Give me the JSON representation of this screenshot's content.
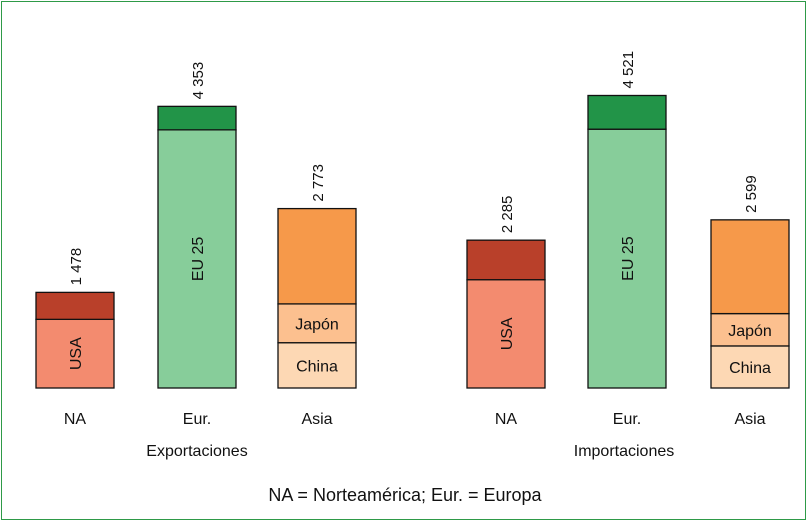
{
  "footnote": "NA = Norteamérica; Eur. = Europa",
  "colors": {
    "na_top": "#b9402a",
    "na_base": "#f38b6f",
    "eur_top": "#229448",
    "eur_base": "#87cd9a",
    "asia_top": "#f6994a",
    "asia_mid": "#fcc08f",
    "asia_base": "#fdd8b4",
    "frame": "#2e9a48"
  },
  "chart_data": [
    {
      "type": "bar",
      "stacked": true,
      "xlabel": "Exportaciones",
      "categories": [
        "NA",
        "Eur.",
        "Asia"
      ],
      "totals": [
        1478,
        4353,
        2773
      ],
      "total_labels": [
        "1 478",
        "4 353",
        "2 773"
      ],
      "segments": [
        [
          {
            "label": "USA",
            "value": 1061,
            "color": "na_base"
          },
          {
            "label": "",
            "value": 417,
            "color": "na_top"
          }
        ],
        [
          {
            "label": "EU 25",
            "value": 3990,
            "color": "eur_base"
          },
          {
            "label": "",
            "value": 363,
            "color": "eur_top"
          }
        ],
        [
          {
            "label": "China",
            "value": 700,
            "color": "asia_base"
          },
          {
            "label": "Japón",
            "value": 600,
            "color": "asia_mid"
          },
          {
            "label": "",
            "value": 1473,
            "color": "asia_top"
          }
        ]
      ]
    },
    {
      "type": "bar",
      "stacked": true,
      "xlabel": "Importaciones",
      "categories": [
        "NA",
        "Eur.",
        "Asia"
      ],
      "totals": [
        2285,
        4521,
        2599
      ],
      "total_labels": [
        "2 285",
        "4 521",
        "2 599"
      ],
      "segments": [
        [
          {
            "label": "USA",
            "value": 1674,
            "color": "na_base"
          },
          {
            "label": "",
            "value": 611,
            "color": "na_top"
          }
        ],
        [
          {
            "label": "EU 25",
            "value": 4000,
            "color": "eur_base"
          },
          {
            "label": "",
            "value": 521,
            "color": "eur_top"
          }
        ],
        [
          {
            "label": "China",
            "value": 650,
            "color": "asia_base"
          },
          {
            "label": "Japón",
            "value": 500,
            "color": "asia_mid"
          },
          {
            "label": "",
            "value": 1449,
            "color": "asia_top"
          }
        ]
      ]
    }
  ]
}
